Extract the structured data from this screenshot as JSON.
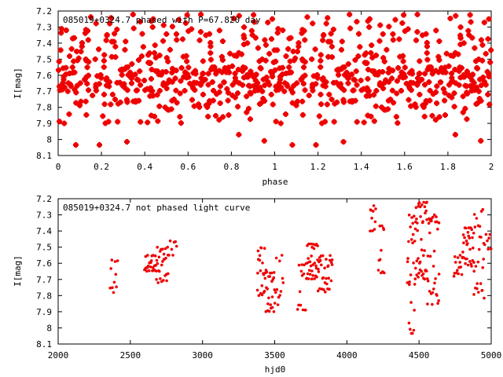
{
  "chart_data": [
    {
      "type": "scatter",
      "title": "085019+0324.7 phased with P=67.820 day",
      "xlabel": "phase",
      "ylabel": "I[mag]",
      "xlim": [
        0,
        2
      ],
      "ylim": [
        8.1,
        7.2
      ],
      "y_inverted": true,
      "x_ticks": [
        "0",
        "0.2",
        "0.4",
        "0.6",
        "0.8",
        "1",
        "1.2",
        "1.4",
        "1.6",
        "1.8",
        "2"
      ],
      "y_ticks": [
        "7.2",
        "7.3",
        "7.4",
        "7.5",
        "7.6",
        "7.7",
        "7.8",
        "7.9",
        "8",
        "8.1"
      ],
      "marker": "star",
      "color": "#ee0000",
      "points_note": "phase-folded copy of the light-curve data, shown twice (phase and phase+1)"
    },
    {
      "type": "scatter",
      "title": "085019+0324.7 not phased light curve",
      "xlabel": "hjd0",
      "ylabel": "I[mag]",
      "xlim": [
        2000,
        5000
      ],
      "ylim": [
        8.1,
        7.2
      ],
      "y_inverted": true,
      "x_ticks": [
        "2000",
        "2500",
        "3000",
        "3500",
        "4000",
        "4500",
        "5000"
      ],
      "y_ticks": [
        "7.2",
        "7.3",
        "7.4",
        "7.5",
        "7.6",
        "7.7",
        "7.8",
        "7.9",
        "8",
        "8.1"
      ],
      "marker": "dot",
      "color": "#ee0000",
      "segments": [
        {
          "t0": 2360,
          "t1": 2410,
          "m0": 7.58,
          "m1": 7.8,
          "n": 10
        },
        {
          "t0": 2600,
          "t1": 2680,
          "m0": 7.55,
          "m1": 7.65,
          "n": 24
        },
        {
          "t0": 2680,
          "t1": 2760,
          "m0": 7.5,
          "m1": 7.72,
          "n": 26
        },
        {
          "t0": 2760,
          "t1": 2820,
          "m0": 7.46,
          "m1": 7.55,
          "n": 8
        },
        {
          "t0": 3380,
          "t1": 3440,
          "m0": 7.5,
          "m1": 7.8,
          "n": 22
        },
        {
          "t0": 3440,
          "t1": 3500,
          "m0": 7.65,
          "m1": 7.9,
          "n": 22
        },
        {
          "t0": 3500,
          "t1": 3560,
          "m0": 7.55,
          "m1": 7.86,
          "n": 12
        },
        {
          "t0": 3660,
          "t1": 3720,
          "m0": 7.6,
          "m1": 7.89,
          "n": 14
        },
        {
          "t0": 3720,
          "t1": 3800,
          "m0": 7.48,
          "m1": 7.7,
          "n": 34
        },
        {
          "t0": 3800,
          "t1": 3900,
          "m0": 7.55,
          "m1": 7.78,
          "n": 30
        },
        {
          "t0": 4160,
          "t1": 4200,
          "m0": 7.22,
          "m1": 7.4,
          "n": 10
        },
        {
          "t0": 4220,
          "t1": 4260,
          "m0": 7.36,
          "m1": 7.66,
          "n": 12
        },
        {
          "t0": 4420,
          "t1": 4470,
          "m0": 7.3,
          "m1": 8.04,
          "n": 24
        },
        {
          "t0": 4470,
          "t1": 4560,
          "m0": 7.22,
          "m1": 7.7,
          "n": 46
        },
        {
          "t0": 4560,
          "t1": 4640,
          "m0": 7.3,
          "m1": 7.86,
          "n": 30
        },
        {
          "t0": 4740,
          "t1": 4800,
          "m0": 7.55,
          "m1": 7.68,
          "n": 14
        },
        {
          "t0": 4800,
          "t1": 4880,
          "m0": 7.38,
          "m1": 7.62,
          "n": 30
        },
        {
          "t0": 4880,
          "t1": 4950,
          "m0": 7.26,
          "m1": 7.82,
          "n": 24
        },
        {
          "t0": 4950,
          "t1": 5000,
          "m0": 7.42,
          "m1": 7.52,
          "n": 8
        }
      ]
    }
  ]
}
